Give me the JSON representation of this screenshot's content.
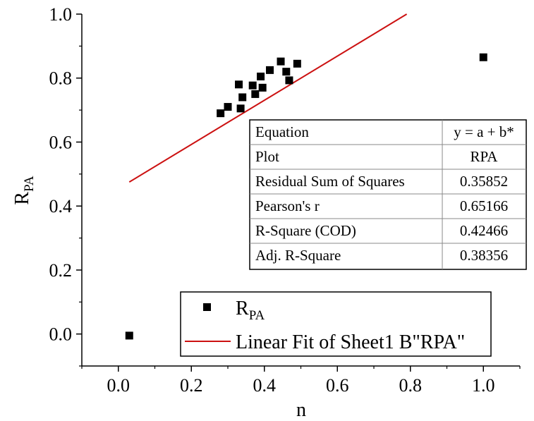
{
  "chart_data": {
    "type": "scatter",
    "xlabel": "n",
    "ylabel": {
      "main": "R",
      "sub": "PA"
    },
    "xlim": [
      -0.1,
      1.1
    ],
    "ylim": [
      -0.1,
      1.0
    ],
    "x_ticks": [
      0.0,
      0.2,
      0.4,
      0.6,
      0.8,
      1.0
    ],
    "x_tick_labels": [
      "0.0",
      "0.2",
      "0.4",
      "0.6",
      "0.8",
      "1.0"
    ],
    "y_ticks": [
      0.0,
      0.2,
      0.4,
      0.6,
      0.8,
      1.0
    ],
    "y_tick_labels": [
      "0.0",
      "0.2",
      "0.4",
      "0.6",
      "0.8",
      "1.0"
    ],
    "series": [
      {
        "name": "RPA",
        "label": {
          "main": "R",
          "sub": "PA"
        },
        "kind": "scatter",
        "marker": "square",
        "color": "#000000",
        "x": [
          0.03,
          0.28,
          0.3,
          0.33,
          0.335,
          0.34,
          0.368,
          0.375,
          0.39,
          0.395,
          0.415,
          0.445,
          0.46,
          0.468,
          0.49,
          1.0
        ],
        "y": [
          -0.005,
          0.69,
          0.71,
          0.78,
          0.705,
          0.74,
          0.777,
          0.75,
          0.805,
          0.77,
          0.825,
          0.852,
          0.82,
          0.793,
          0.845,
          0.865
        ]
      },
      {
        "name": "Linear Fit of Sheet1 B\"RPA\"",
        "kind": "line",
        "color": "#cc1111",
        "x": [
          0.03,
          0.79
        ],
        "y": [
          0.475,
          1.0
        ]
      }
    ],
    "stats_table": {
      "rows": [
        [
          "Equation",
          "y = a + b*"
        ],
        [
          "Plot",
          "RPA"
        ],
        [
          "Residual Sum of Squares",
          "0.35852"
        ],
        [
          "Pearson's r",
          "0.65166"
        ],
        [
          "R-Square (COD)",
          "0.42466"
        ],
        [
          "Adj. R-Square",
          "0.38356"
        ]
      ]
    },
    "legend": {
      "placement": "bottom",
      "entries": [
        {
          "label_main": "R",
          "label_sub": "PA",
          "symbol": "square"
        },
        {
          "label": "Linear Fit of Sheet1 B\"RPA\"",
          "symbol": "line"
        }
      ]
    }
  }
}
